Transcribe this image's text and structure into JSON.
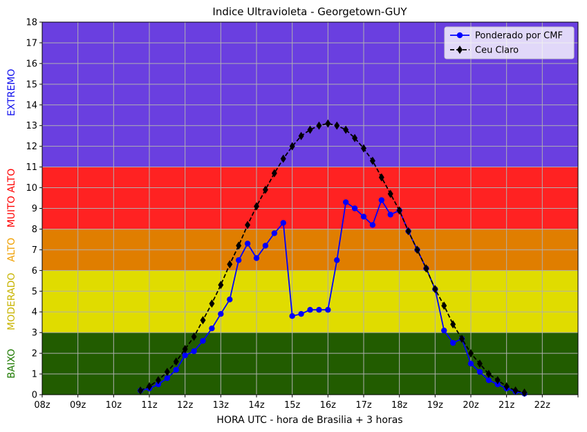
{
  "chart_data": {
    "type": "line",
    "title": "Indice Ultravioleta - Georgetown-GUY",
    "xlabel": "HORA UTC - hora de Brasilia + 3 horas",
    "ylabel": "",
    "x_tick_labels": [
      "08z",
      "09z",
      "10z",
      "11z",
      "12z",
      "13z",
      "14z",
      "15z",
      "16z",
      "17z",
      "18z",
      "19z",
      "20z",
      "21z",
      "22z",
      ""
    ],
    "x_ticks_hours": [
      8,
      9,
      10,
      11,
      12,
      13,
      14,
      15,
      16,
      17,
      18,
      19,
      20,
      21,
      22,
      23
    ],
    "xlim": [
      8,
      23
    ],
    "ylim": [
      0,
      18
    ],
    "y_ticks": [
      0,
      1,
      2,
      3,
      4,
      5,
      6,
      7,
      8,
      9,
      10,
      11,
      12,
      13,
      14,
      15,
      16,
      17,
      18
    ],
    "grid": true,
    "legend_position": "top-right",
    "bands": [
      {
        "label": "BAIXO",
        "from": 0,
        "to": 3,
        "color": "#225c00",
        "label_color": "#1e7a00"
      },
      {
        "label": "MODERADO",
        "from": 3,
        "to": 6,
        "color": "#e0dc00",
        "label_color": "#c8b400"
      },
      {
        "label": "ALTO",
        "from": 6,
        "to": 8,
        "color": "#e07e00",
        "label_color": "#f0a000"
      },
      {
        "label": "MUITO ALTO",
        "from": 8,
        "to": 11,
        "color": "#ff2222",
        "label_color": "#ff0000"
      },
      {
        "label": "EXTREMO",
        "from": 11,
        "to": 18,
        "color": "#6a3fe0",
        "label_color": "#1010ee"
      }
    ],
    "series": [
      {
        "name": "Ponderado por CMF",
        "color": "#0000ff",
        "marker": "circle",
        "linestyle": "solid",
        "x": [
          10.75,
          11.0,
          11.25,
          11.5,
          11.75,
          12.0,
          12.25,
          12.5,
          12.75,
          13.0,
          13.25,
          13.5,
          13.75,
          14.0,
          14.25,
          14.5,
          14.75,
          15.0,
          15.25,
          15.5,
          15.75,
          16.0,
          16.25,
          16.5,
          16.75,
          17.0,
          17.25,
          17.5,
          17.75,
          18.0,
          18.25,
          18.5,
          18.75,
          19.0,
          19.25,
          19.5,
          19.75,
          20.0,
          20.25,
          20.5,
          20.75,
          21.0,
          21.25,
          21.5
        ],
        "y": [
          0.2,
          0.3,
          0.5,
          0.8,
          1.2,
          1.9,
          2.1,
          2.6,
          3.2,
          3.9,
          4.6,
          6.5,
          7.3,
          6.6,
          7.2,
          7.8,
          8.3,
          3.8,
          3.9,
          4.1,
          4.1,
          4.1,
          6.5,
          9.3,
          9.0,
          8.6,
          8.2,
          9.4,
          8.7,
          8.9,
          7.9,
          7.0,
          6.1,
          5.1,
          3.1,
          2.5,
          2.7,
          1.5,
          1.1,
          0.7,
          0.5,
          0.3,
          0.15,
          0.05
        ]
      },
      {
        "name": "Ceu Claro",
        "color": "#000000",
        "marker": "diamond",
        "linestyle": "dashed",
        "x": [
          10.75,
          11.0,
          11.25,
          11.5,
          11.75,
          12.0,
          12.25,
          12.5,
          12.75,
          13.0,
          13.25,
          13.5,
          13.75,
          14.0,
          14.25,
          14.5,
          14.75,
          15.0,
          15.25,
          15.5,
          15.75,
          16.0,
          16.25,
          16.5,
          16.75,
          17.0,
          17.25,
          17.5,
          17.75,
          18.0,
          18.25,
          18.5,
          18.75,
          19.0,
          19.25,
          19.5,
          19.75,
          20.0,
          20.25,
          20.5,
          20.75,
          21.0,
          21.25,
          21.5
        ],
        "y": [
          0.2,
          0.4,
          0.7,
          1.1,
          1.6,
          2.2,
          2.8,
          3.6,
          4.4,
          5.3,
          6.3,
          7.2,
          8.2,
          9.1,
          9.9,
          10.7,
          11.4,
          12.0,
          12.5,
          12.8,
          13.0,
          13.1,
          13.0,
          12.8,
          12.4,
          11.9,
          11.3,
          10.5,
          9.7,
          8.9,
          7.9,
          7.0,
          6.1,
          5.1,
          4.3,
          3.4,
          2.7,
          2.0,
          1.5,
          1.0,
          0.7,
          0.4,
          0.2,
          0.1
        ]
      }
    ]
  }
}
